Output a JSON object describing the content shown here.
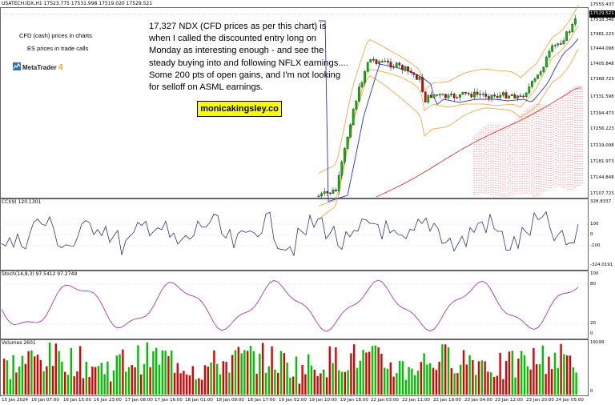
{
  "header": {
    "symbol_line": "USATECH.IDX,H1  17523.775 17531.998 17519.020 17529.521",
    "cci_label": "CCI(9) 120.1301",
    "stoch_label": "Stoch(14,8,3) 97.5412 97.2749",
    "volumes_label": "Volumes 2601"
  },
  "annotation": {
    "text": "17,327 NDX (CFD prices as per this chart) is when I called the discounted entry long on Monday as interesting enough - and see the steady buying into and following NFLX earnings.... Some 200 pts of open gains, and I'm not looking for selloff on ASML earnings.",
    "brand": "monicakingsley.co"
  },
  "notes": {
    "line1": "CFD (cash) prices in charts",
    "line2": "ES prices in trade calls",
    "platform": "MetaTrader",
    "platform_num": "4"
  },
  "price_axis": {
    "labels": [
      "17555.437",
      "17518.346",
      "17481.223",
      "17444.098",
      "17405.848",
      "17368.723",
      "17331.598",
      "17294.473",
      "17256.223",
      "17219.098",
      "17181.973",
      "17144.848",
      "17107.723"
    ],
    "current": "17529.521"
  },
  "cci_axis": {
    "labels": [
      "328.8337",
      "100",
      "0",
      "-100",
      "-324.0191"
    ]
  },
  "stoch_axis": {
    "labels": [
      "100",
      "80",
      "20",
      "0"
    ]
  },
  "volume_axis": {
    "labels": [
      "19199",
      "0"
    ]
  },
  "time_axis": {
    "labels": [
      "15 Jan 2024",
      "16 Jan 07:00",
      "16 Jan 15:00",
      "16 Jan 23:00",
      "17 Jan 08:00",
      "17 Jan 16:00",
      "18 Jan 01:00",
      "18 Jan 09:00",
      "18 Jan 17:00",
      "19 Jan 02:00",
      "19 Jan 10:00",
      "19 Jan 18:00",
      "22 Jan 03:00",
      "22 Jan 11:00",
      "22 Jan 19:00",
      "23 Jan 04:00",
      "23 Jan 12:00",
      "23 Jan 20:00",
      "24 Jan 05:00"
    ]
  },
  "colors": {
    "bull": "#00c000",
    "bear": "#e00000",
    "band": "#f0a030",
    "ma_blue": "#3030d0",
    "ma_red": "#e02020",
    "cci_line": "#303080",
    "stoch_line": "#a020a0"
  },
  "chart_data": {
    "type": "candlestick",
    "symbol": "USATECH.IDX",
    "timeframe": "H1",
    "ylim": [
      17107.723,
      17555.437
    ],
    "last_close": 17529.521
  }
}
